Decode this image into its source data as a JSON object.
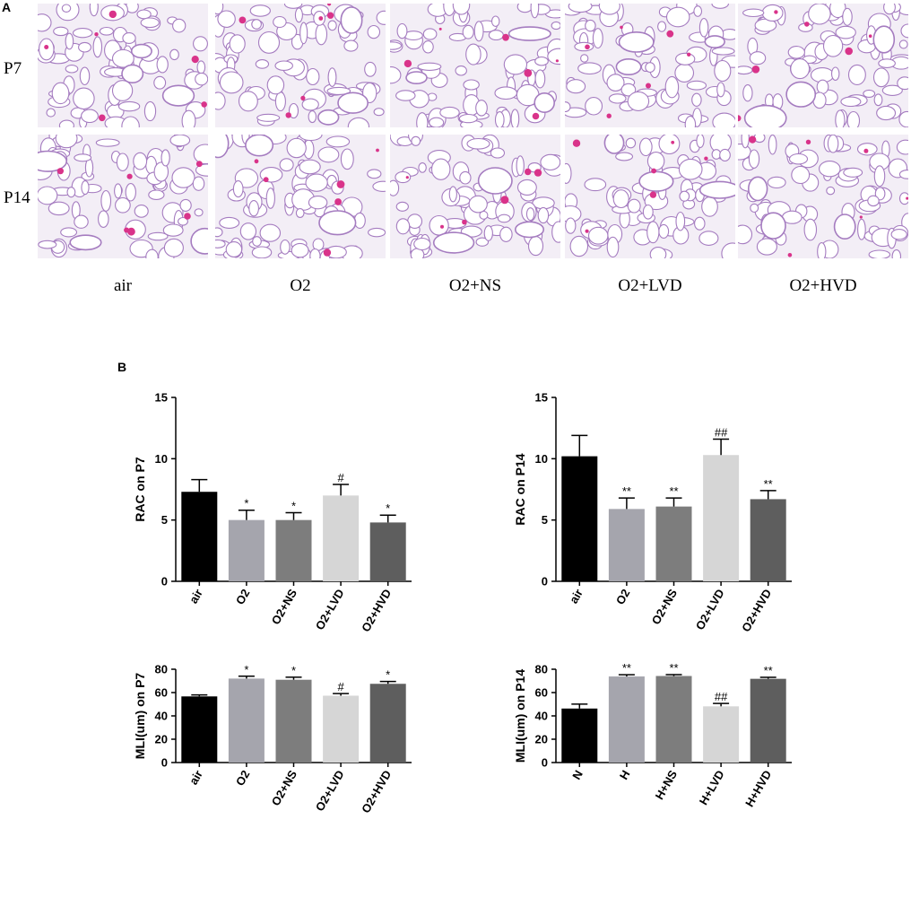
{
  "figure": {
    "panel_a_label": "A",
    "panel_b_label": "B",
    "rows": [
      "P7",
      "P14"
    ],
    "columns": [
      "air",
      "O2",
      "O2+NS",
      "O2+LVD",
      "O2+HVD"
    ],
    "images": [
      {
        "row": "P7",
        "column": "air",
        "description": "H&E lung tissue micrograph"
      },
      {
        "row": "P7",
        "column": "O2",
        "description": "H&E lung tissue micrograph"
      },
      {
        "row": "P7",
        "column": "O2+NS",
        "description": "H&E lung tissue micrograph"
      },
      {
        "row": "P7",
        "column": "O2+LVD",
        "description": "H&E lung tissue micrograph"
      },
      {
        "row": "P7",
        "column": "O2+HVD",
        "description": "H&E lung tissue micrograph"
      },
      {
        "row": "P14",
        "column": "air",
        "description": "H&E lung tissue micrograph"
      },
      {
        "row": "P14",
        "column": "O2",
        "description": "H&E lung tissue micrograph"
      },
      {
        "row": "P14",
        "column": "O2+NS",
        "description": "H&E lung tissue micrograph"
      },
      {
        "row": "P14",
        "column": "O2+LVD",
        "description": "H&E lung tissue micrograph"
      },
      {
        "row": "P14",
        "column": "O2+HVD",
        "description": "H&E lung tissue micrograph"
      }
    ],
    "colors": {
      "tissue_bg": "#f3eef6",
      "tissue_wall": "#a57cc0",
      "tissue_vessel": "#d9338a"
    }
  },
  "chart_data": [
    {
      "type": "bar",
      "ylabel": "RAC on P7",
      "categories": [
        "air",
        "O2",
        "O2+NS",
        "O2+LVD",
        "O2+HVD"
      ],
      "values": [
        7.3,
        5.0,
        5.0,
        7.0,
        4.8
      ],
      "errors": [
        1.0,
        0.8,
        0.6,
        0.9,
        0.6
      ],
      "significance": [
        "",
        "*",
        "*",
        "#",
        "*"
      ],
      "ylim": [
        0,
        15
      ],
      "yticks": [
        0,
        5,
        10,
        15
      ],
      "colors": [
        "#000000",
        "#a5a5ad",
        "#7d7d7d",
        "#d6d6d6",
        "#5e5e5e"
      ]
    },
    {
      "type": "bar",
      "ylabel": "RAC on P14",
      "categories": [
        "air",
        "O2",
        "O2+NS",
        "O2+LVD",
        "O2+HVD"
      ],
      "values": [
        10.2,
        5.9,
        6.1,
        10.3,
        6.7
      ],
      "errors": [
        1.7,
        0.9,
        0.7,
        1.3,
        0.7
      ],
      "significance": [
        "",
        "**",
        "**",
        "##",
        "**"
      ],
      "ylim": [
        0,
        15
      ],
      "yticks": [
        0,
        5,
        10,
        15
      ],
      "colors": [
        "#000000",
        "#a5a5ad",
        "#7d7d7d",
        "#d6d6d6",
        "#5e5e5e"
      ]
    },
    {
      "type": "bar",
      "ylabel": "MLI(um) on P7",
      "categories": [
        "air",
        "O2",
        "O2+NS",
        "O2+LVD",
        "O2+HVD"
      ],
      "values": [
        56.7,
        72.0,
        71.0,
        57.3,
        67.5
      ],
      "errors": [
        1.3,
        2.0,
        2.2,
        1.8,
        2.0
      ],
      "significance": [
        "",
        "*",
        "*",
        "#",
        "*"
      ],
      "ylim": [
        0,
        80
      ],
      "yticks": [
        0,
        20,
        40,
        60,
        80
      ],
      "colors": [
        "#000000",
        "#a5a5ad",
        "#7d7d7d",
        "#d6d6d6",
        "#5e5e5e"
      ]
    },
    {
      "type": "bar",
      "ylabel": "MLI(um) on P14",
      "categories": [
        "N",
        "H",
        "H+NS",
        "H+LVD",
        "H+HVD"
      ],
      "values": [
        46.3,
        73.8,
        74.2,
        48.2,
        71.8
      ],
      "errors": [
        3.8,
        1.5,
        1.2,
        2.5,
        1.3
      ],
      "significance": [
        "",
        "**",
        "**",
        "##",
        "**"
      ],
      "ylim": [
        0,
        80
      ],
      "yticks": [
        0,
        20,
        40,
        60,
        80
      ],
      "colors": [
        "#000000",
        "#a5a5ad",
        "#7d7d7d",
        "#d6d6d6",
        "#5e5e5e"
      ]
    }
  ]
}
